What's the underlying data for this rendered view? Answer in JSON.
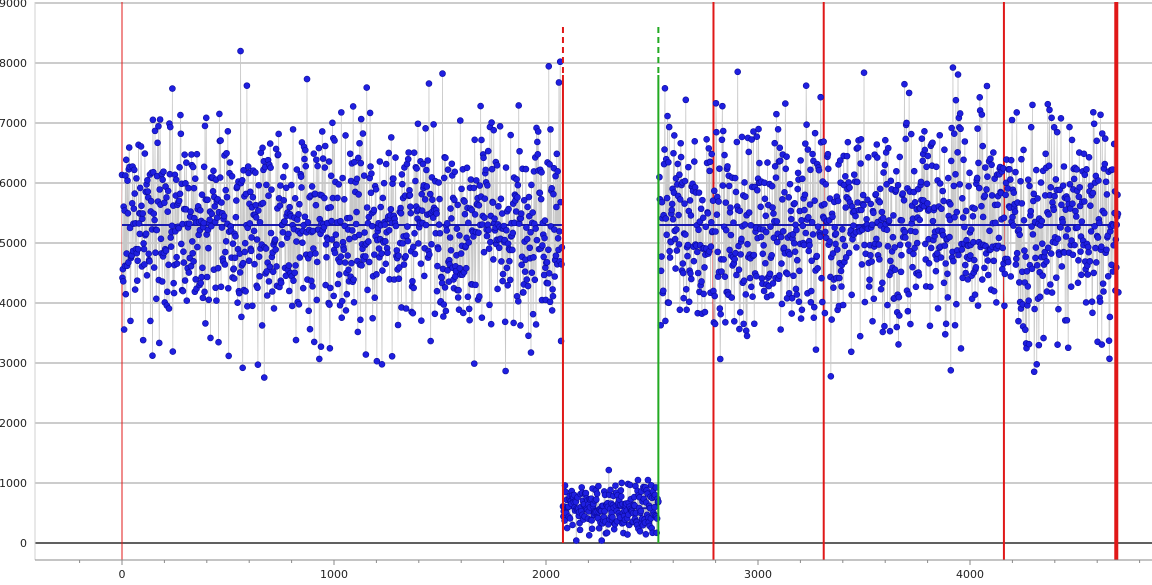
{
  "chart_data": {
    "type": "scatter",
    "title": "",
    "xlabel": "",
    "ylabel": "",
    "xlim": [
      -400,
      4900
    ],
    "ylim": [
      -300,
      9000
    ],
    "x_ticks": [
      0,
      1000,
      2000,
      3000,
      4000
    ],
    "y_ticks": [
      0,
      1000,
      2000,
      3000,
      4000,
      5000,
      6000,
      7000,
      8000,
      9000
    ],
    "x_tick_labels": [
      "0",
      "1000",
      "2000",
      "3000",
      "4000"
    ],
    "y_tick_labels": [
      "0",
      "1000",
      "2000",
      "3000",
      "4000",
      "5000",
      "6000",
      "7000",
      "8000",
      "9000"
    ],
    "grid": "horizontal",
    "legend": "none",
    "colors": {
      "points": "#1f1fe0",
      "point_edge": "#0b0b9e",
      "connector": "#c8c8c8",
      "center_line": "#1a1ab0",
      "gridline": "#9a9a9a",
      "zero_line": "#000000",
      "red_marker": "#e01818",
      "green_marker": "#22aa22"
    },
    "series": [
      {
        "segments": [
          {
            "x_range": [
              0,
              2075
            ],
            "mean": 5300,
            "spread": 900,
            "min": 2080,
            "max": 8400,
            "n": 1040
          },
          {
            "x_range": [
              2080,
              2530
            ],
            "mean": 580,
            "spread": 220,
            "min": 40,
            "max": 1380,
            "n": 230
          },
          {
            "x_range": [
              2535,
              4700
            ],
            "mean": 5300,
            "spread": 900,
            "min": 2560,
            "max": 8600,
            "n": 1080
          }
        ]
      }
    ],
    "center_lines": [
      {
        "x_start": 0,
        "x_end": 2075,
        "y": 5300
      },
      {
        "x_start": 2080,
        "x_end": 2530,
        "y": 580
      },
      {
        "x_start": 2535,
        "x_end": 4700,
        "y": 5300
      }
    ],
    "vertical_markers": [
      {
        "x": 0,
        "color": "red",
        "style": "solid"
      },
      {
        "x": 2080,
        "color": "red",
        "style": "dashed-top"
      },
      {
        "x": 2530,
        "color": "green",
        "style": "dashed-top"
      },
      {
        "x": 2790,
        "color": "red",
        "style": "solid"
      },
      {
        "x": 3310,
        "color": "red",
        "style": "solid"
      },
      {
        "x": 4160,
        "color": "red",
        "style": "solid"
      },
      {
        "x": 4690,
        "color": "red",
        "style": "thick"
      }
    ]
  }
}
